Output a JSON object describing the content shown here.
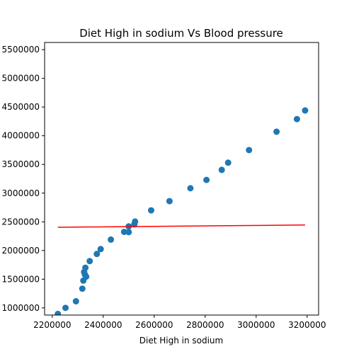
{
  "chart_data": {
    "type": "scatter",
    "title": "Diet High in sodium Vs Blood pressure",
    "xlabel": "Diet High in sodium",
    "ylabel": "",
    "xlim": [
      2170000,
      3245000
    ],
    "ylim": [
      875000,
      5625000
    ],
    "x_ticks": [
      2200000,
      2400000,
      2600000,
      2800000,
      3000000,
      3200000
    ],
    "x_tick_labels": [
      "2200000",
      "2400000",
      "2600000",
      "2800000",
      "3000000",
      "3200000"
    ],
    "y_ticks": [
      1000000,
      1500000,
      2000000,
      2500000,
      3000000,
      3500000,
      4000000,
      4500000,
      5000000,
      5500000
    ],
    "y_tick_labels": [
      "1000000",
      "1500000",
      "2000000",
      "2500000",
      "3000000",
      "3500000",
      "4000000",
      "4500000",
      "5000000",
      "5500000"
    ],
    "grid": false,
    "marker_color": "#1f77b4",
    "line_color": "#ff0000",
    "points": [
      {
        "x": 2222000,
        "y": 895000
      },
      {
        "x": 2252000,
        "y": 1000000
      },
      {
        "x": 2293000,
        "y": 1115000
      },
      {
        "x": 2318000,
        "y": 1335000
      },
      {
        "x": 2322000,
        "y": 1475000
      },
      {
        "x": 2325000,
        "y": 1625000
      },
      {
        "x": 2330000,
        "y": 1700000
      },
      {
        "x": 2328000,
        "y": 1580000
      },
      {
        "x": 2333000,
        "y": 1545000
      },
      {
        "x": 2347000,
        "y": 1815000
      },
      {
        "x": 2375000,
        "y": 1940000
      },
      {
        "x": 2390000,
        "y": 2025000
      },
      {
        "x": 2430000,
        "y": 2190000
      },
      {
        "x": 2482000,
        "y": 2325000
      },
      {
        "x": 2500000,
        "y": 2320000
      },
      {
        "x": 2500000,
        "y": 2420000
      },
      {
        "x": 2522000,
        "y": 2455000
      },
      {
        "x": 2525000,
        "y": 2505000
      },
      {
        "x": 2588000,
        "y": 2700000
      },
      {
        "x": 2660000,
        "y": 2860000
      },
      {
        "x": 2742000,
        "y": 3085000
      },
      {
        "x": 2805000,
        "y": 3230000
      },
      {
        "x": 2865000,
        "y": 3405000
      },
      {
        "x": 2890000,
        "y": 3530000
      },
      {
        "x": 2972000,
        "y": 3750000
      },
      {
        "x": 3080000,
        "y": 4070000
      },
      {
        "x": 3160000,
        "y": 4290000
      },
      {
        "x": 3192000,
        "y": 4440000
      }
    ],
    "trend_line": {
      "x": [
        2222000,
        3192000
      ],
      "y": [
        2405000,
        2445000
      ]
    }
  }
}
